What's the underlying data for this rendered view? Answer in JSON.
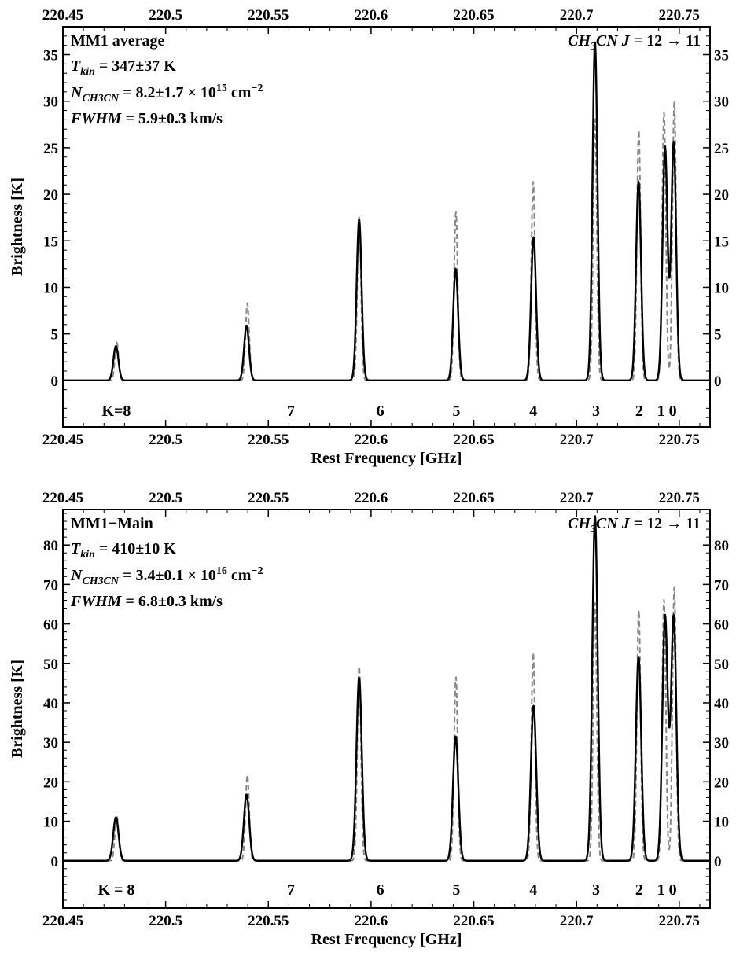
{
  "chart_data": [
    {
      "type": "line",
      "title": "",
      "xlabel": "Rest Frequency [GHz]",
      "ylabel": "Brightness [K]",
      "xlim": [
        220.45,
        220.765
      ],
      "ylim": [
        -5,
        38
      ],
      "x_ticks": [
        220.45,
        220.5,
        220.55,
        220.6,
        220.65,
        220.7,
        220.75
      ],
      "x_tick_labels": [
        "220.45",
        "220.5",
        "220.55",
        "220.6",
        "220.65",
        "220.7",
        "220.75"
      ],
      "y_ticks": [
        0,
        5,
        10,
        15,
        20,
        25,
        30,
        35
      ],
      "y_tick_labels": [
        "0",
        "5",
        "10",
        "15",
        "20",
        "25",
        "30",
        "35"
      ],
      "annotation_left": [
        {
          "text": "MM1 average"
        },
        {
          "text": "T",
          "sub": "kin",
          "rest": " = 347±37 K"
        },
        {
          "text": "N",
          "sub": "CH3CN",
          "rest": " = 8.2±1.7 × 10",
          "sup": "15",
          "tail": " cm",
          "tail_sup": "−2"
        },
        {
          "text": "FWHM",
          "rest": " = 5.9±0.3 km/s"
        }
      ],
      "annotation_right": {
        "pre": "CH",
        "sub": "3",
        "mid": "CN ",
        "j": "J",
        "rest": " = 12 → 11"
      },
      "k_labels": [
        {
          "label": "K=8",
          "x": 220.476
        },
        {
          "label": "7",
          "x": 220.561
        },
        {
          "label": "6",
          "x": 220.6045
        },
        {
          "label": "5",
          "x": 220.6415
        },
        {
          "label": "4",
          "x": 220.679
        },
        {
          "label": "3",
          "x": 220.7095
        },
        {
          "label": "2",
          "x": 220.7305
        },
        {
          "label": "1 0",
          "x": 220.744
        }
      ],
      "series": [
        {
          "style": "solid",
          "color": "#000000",
          "sigma": 0.0012,
          "peaks": [
            {
              "x": 220.4758,
              "y": 3.7
            },
            {
              "x": 220.5394,
              "y": 5.9
            },
            {
              "x": 220.5942,
              "y": 17.3
            },
            {
              "x": 220.6412,
              "y": 12.0
            },
            {
              "x": 220.6791,
              "y": 15.4
            },
            {
              "x": 220.709,
              "y": 36.4
            },
            {
              "x": 220.7302,
              "y": 21.4
            },
            {
              "x": 220.7431,
              "y": 25.1
            },
            {
              "x": 220.7473,
              "y": 25.6
            }
          ]
        },
        {
          "style": "dashed",
          "color": "#888888",
          "sigma": 0.0009,
          "peaks": [
            {
              "x": 220.4762,
              "y": 4.1
            },
            {
              "x": 220.5398,
              "y": 8.3
            },
            {
              "x": 220.5942,
              "y": 17.6
            },
            {
              "x": 220.6413,
              "y": 18.1
            },
            {
              "x": 220.6789,
              "y": 21.4
            },
            {
              "x": 220.709,
              "y": 28.2
            },
            {
              "x": 220.7303,
              "y": 26.9
            },
            {
              "x": 220.7426,
              "y": 28.8
            },
            {
              "x": 220.7476,
              "y": 30.0
            }
          ]
        }
      ]
    },
    {
      "type": "line",
      "title": "",
      "xlabel": "Rest Frequency [GHz]",
      "ylabel": "Brightness [K]",
      "xlim": [
        220.45,
        220.765
      ],
      "ylim": [
        -12,
        89
      ],
      "x_ticks": [
        220.45,
        220.5,
        220.55,
        220.6,
        220.65,
        220.7,
        220.75
      ],
      "x_tick_labels": [
        "220.45",
        "220.5",
        "220.55",
        "220.6",
        "220.65",
        "220.7",
        "220.75"
      ],
      "y_ticks": [
        0,
        10,
        20,
        30,
        40,
        50,
        60,
        70,
        80
      ],
      "y_tick_labels": [
        "0",
        "10",
        "20",
        "30",
        "40",
        "50",
        "60",
        "70",
        "80"
      ],
      "annotation_left": [
        {
          "text": "MM1−Main"
        },
        {
          "text": "T",
          "sub": "kin",
          "rest": " = 410±10 K"
        },
        {
          "text": "N",
          "sub": "CH3CN",
          "rest": " = 3.4±0.1 × 10",
          "sup": "16",
          "tail": " cm",
          "tail_sup": "−2"
        },
        {
          "text": "FWHM",
          "rest": " = 6.8±0.3 km/s"
        }
      ],
      "annotation_right": {
        "pre": "CH",
        "sub": "3",
        "mid": "CN ",
        "j": "J",
        "rest": " = 12 → 11"
      },
      "k_labels": [
        {
          "label": "K = 8",
          "x": 220.476
        },
        {
          "label": "7",
          "x": 220.561
        },
        {
          "label": "6",
          "x": 220.6045
        },
        {
          "label": "5",
          "x": 220.6415
        },
        {
          "label": "4",
          "x": 220.679
        },
        {
          "label": "3",
          "x": 220.7095
        },
        {
          "label": "2",
          "x": 220.7305
        },
        {
          "label": "1 0",
          "x": 220.744
        }
      ],
      "series": [
        {
          "style": "solid",
          "color": "#000000",
          "sigma": 0.0013,
          "peaks": [
            {
              "x": 220.4758,
              "y": 11.0
            },
            {
              "x": 220.5394,
              "y": 16.8
            },
            {
              "x": 220.5942,
              "y": 46.5
            },
            {
              "x": 220.6412,
              "y": 31.5
            },
            {
              "x": 220.6791,
              "y": 39.3
            },
            {
              "x": 220.709,
              "y": 87.5
            },
            {
              "x": 220.7302,
              "y": 51.7
            },
            {
              "x": 220.7431,
              "y": 62.0
            },
            {
              "x": 220.7473,
              "y": 62.0
            }
          ]
        },
        {
          "style": "dashed",
          "color": "#888888",
          "sigma": 0.0009,
          "peaks": [
            {
              "x": 220.4762,
              "y": 11.5
            },
            {
              "x": 220.5398,
              "y": 21.8
            },
            {
              "x": 220.5942,
              "y": 49.5
            },
            {
              "x": 220.6413,
              "y": 46.6
            },
            {
              "x": 220.6789,
              "y": 52.8
            },
            {
              "x": 220.709,
              "y": 65.6
            },
            {
              "x": 220.7303,
              "y": 63.6
            },
            {
              "x": 220.7426,
              "y": 66.2
            },
            {
              "x": 220.7476,
              "y": 69.6
            }
          ]
        }
      ]
    }
  ]
}
